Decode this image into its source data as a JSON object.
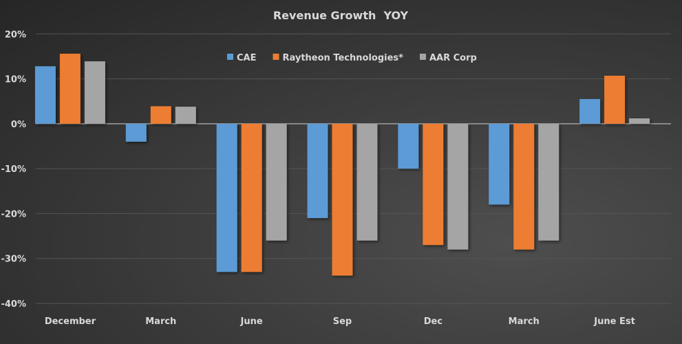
{
  "chart_data": {
    "type": "bar",
    "title": "Revenue Growth  YOY",
    "xlabel": "",
    "ylabel": "",
    "categories": [
      "December",
      "March",
      "June",
      "Sep",
      "Dec",
      "March",
      "June Est"
    ],
    "series": [
      {
        "name": "CAE",
        "color": "#5b9bd5",
        "values": [
          12.8,
          -4.0,
          -33.0,
          -21.0,
          -10.0,
          -18.0,
          5.5
        ]
      },
      {
        "name": "Raytheon Technologies*",
        "color": "#ed7d31",
        "values": [
          15.6,
          3.9,
          -33.0,
          -33.8,
          -27.0,
          -28.0,
          10.7
        ]
      },
      {
        "name": "AAR Corp",
        "color": "#a5a5a5",
        "values": [
          13.9,
          3.8,
          -26.0,
          -26.0,
          -28.0,
          -26.0,
          1.2
        ]
      }
    ],
    "ylim": [
      -40,
      20
    ],
    "yticks": [
      20,
      10,
      0,
      -10,
      -20,
      -30,
      -40
    ],
    "ytick_labels": [
      "20%",
      "10%",
      "0%",
      "-10%",
      "-20%",
      "-30%",
      "-40%"
    ],
    "grid": true,
    "legend": "top-center"
  }
}
